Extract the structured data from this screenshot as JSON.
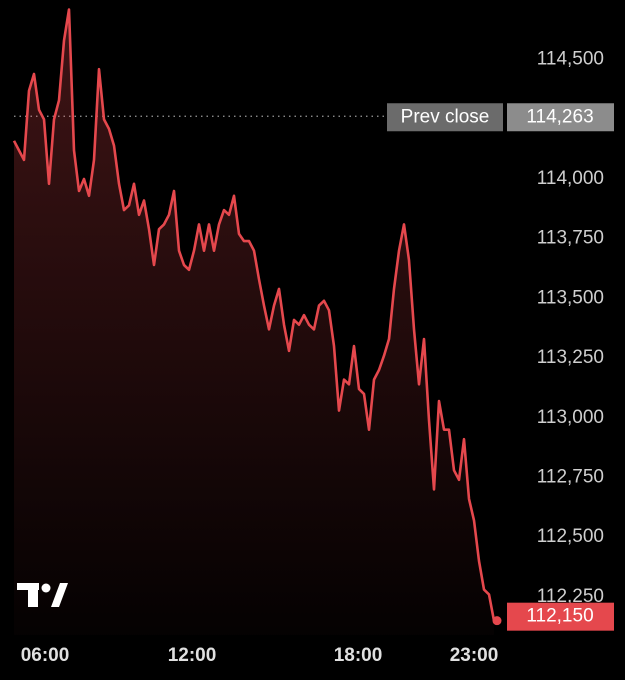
{
  "chart_data": {
    "type": "line",
    "series": [
      {
        "name": null,
        "color": "#e5484d",
        "values": [
          114160,
          114120,
          114080,
          114370,
          114440,
          114290,
          114250,
          113980,
          114250,
          114330,
          114580,
          114710,
          114120,
          113950,
          114000,
          113930,
          114080,
          114460,
          114250,
          114210,
          114140,
          113980,
          113870,
          113890,
          113980,
          113850,
          113910,
          113790,
          113640,
          113790,
          113810,
          113850,
          113950,
          113700,
          113640,
          113620,
          113700,
          113810,
          113700,
          113810,
          113700,
          113810,
          113870,
          113850,
          113930,
          113770,
          113740,
          113740,
          113700,
          113580,
          113470,
          113370,
          113470,
          113540,
          113390,
          113280,
          113410,
          113390,
          113430,
          113390,
          113370,
          113470,
          113490,
          113450,
          113300,
          113030,
          113160,
          113140,
          113300,
          113120,
          113100,
          112950,
          113160,
          113200,
          113260,
          113330,
          113540,
          113700,
          113810,
          113660,
          113370,
          113140,
          113330,
          112990,
          112700,
          113070,
          112950,
          112950,
          112780,
          112740,
          112910,
          112660,
          112570,
          112400,
          112280,
          112260,
          112150
        ],
        "value_labels": [
          null,
          null,
          null,
          null,
          null,
          null,
          null,
          null,
          null,
          null,
          null,
          null,
          null,
          null,
          null,
          null,
          null,
          null,
          null,
          null,
          null,
          null,
          null,
          null,
          null,
          null,
          null,
          null,
          null,
          null,
          null,
          null,
          null,
          null,
          null,
          null,
          null,
          null,
          null,
          null,
          null,
          null,
          null,
          null,
          null,
          null,
          null,
          null,
          null,
          null,
          null,
          null,
          null,
          null,
          null,
          null,
          null,
          null,
          null,
          null,
          null,
          null,
          null,
          null,
          null,
          null,
          null,
          null,
          null,
          null,
          null,
          null,
          null,
          null,
          null,
          null,
          null,
          null,
          null,
          null,
          null,
          null,
          null,
          null,
          null,
          null,
          null,
          null,
          null,
          null,
          null,
          null,
          null,
          null,
          null,
          null,
          "112,150"
        ]
      }
    ],
    "xlim": [
      0,
      96
    ],
    "xticks": [
      {
        "value": 6.2,
        "label": "06:00"
      },
      {
        "value": 35.6,
        "label": "12:00"
      },
      {
        "value": 68.8,
        "label": "18:00"
      },
      {
        "value": 92,
        "label": "23:00"
      }
    ],
    "ylim": [
      112090,
      114750
    ],
    "yticks": [
      {
        "value": 114500,
        "label": "114,500"
      },
      {
        "value": 114000,
        "label": "114,000"
      },
      {
        "value": 113750,
        "label": "113,750"
      },
      {
        "value": 113500,
        "label": "113,500"
      },
      {
        "value": 113250,
        "label": "113,250"
      },
      {
        "value": 113000,
        "label": "113,000"
      },
      {
        "value": 112750,
        "label": "112,750"
      },
      {
        "value": 112500,
        "label": "112,500"
      },
      {
        "value": 112250,
        "label": "112,250"
      }
    ],
    "prev_close": {
      "label": "Prev close",
      "value": 114263,
      "value_label": "114,263"
    },
    "grid": false
  }
}
